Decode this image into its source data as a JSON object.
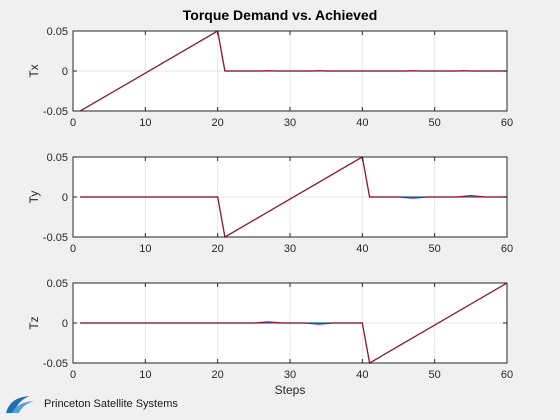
{
  "window": {
    "background": "#f0f0f0"
  },
  "logo": {
    "text": "Princeton Satellite Systems",
    "color": "#1f6fb6"
  },
  "chart_data": {
    "type": "line",
    "title": "Torque Demand vs. Achieved",
    "xlabel": "Steps",
    "colors": {
      "demand": "#0072bd",
      "achieved": "#a2142f",
      "extra": "#edb120",
      "extra2": "#77ac30"
    },
    "grid": true,
    "panels": [
      {
        "ylabel": "Tx",
        "xlim": [
          0,
          60
        ],
        "ylim": [
          -0.05,
          0.05
        ],
        "xticks": [
          "0",
          "10",
          "20",
          "30",
          "40",
          "50",
          "60"
        ],
        "yticks": [
          "0.05",
          "0",
          "-0.05"
        ],
        "series": [
          {
            "key": "demand",
            "x": [
              1,
              20,
              21,
              60
            ],
            "y": [
              -0.05,
              0.05,
              0,
              0
            ]
          },
          {
            "key": "achieved",
            "x": [
              1,
              20,
              21,
              26,
              27,
              28,
              33,
              34,
              35,
              46,
              47,
              48,
              53,
              54,
              55,
              60
            ],
            "y": [
              -0.05,
              0.05,
              0,
              0,
              0.0004,
              0,
              0,
              0.0004,
              0,
              0,
              0.0004,
              0,
              0,
              0.0004,
              0,
              0
            ]
          }
        ]
      },
      {
        "ylabel": "Ty",
        "xlim": [
          0,
          60
        ],
        "ylim": [
          -0.05,
          0.05
        ],
        "xticks": [
          "0",
          "10",
          "20",
          "30",
          "40",
          "50",
          "60"
        ],
        "yticks": [
          "0.05",
          "0",
          "-0.05"
        ],
        "series": [
          {
            "key": "demand",
            "x": [
              1,
              20,
              21,
              40,
              41,
              60
            ],
            "y": [
              0,
              0,
              -0.05,
              0.05,
              0,
              0
            ]
          },
          {
            "key": "achieved",
            "x": [
              1,
              20,
              21,
              40,
              41,
              45,
              47,
              49,
              53,
              55,
              57,
              60
            ],
            "y": [
              0,
              0,
              -0.05,
              0.05,
              0,
              0,
              -0.0015,
              0,
              0,
              0.0018,
              0,
              0
            ]
          }
        ]
      },
      {
        "ylabel": "Tz",
        "xlim": [
          0,
          60
        ],
        "ylim": [
          -0.05,
          0.05
        ],
        "xticks": [
          "0",
          "10",
          "20",
          "30",
          "40",
          "50",
          "60"
        ],
        "yticks": [
          "0.05",
          "0",
          "-0.05"
        ],
        "series": [
          {
            "key": "demand",
            "x": [
              1,
              40,
              41,
              60
            ],
            "y": [
              0,
              0,
              -0.05,
              0.05
            ]
          },
          {
            "key": "achieved",
            "x": [
              1,
              25,
              27,
              29,
              32,
              34,
              36,
              40,
              41,
              60
            ],
            "y": [
              0,
              0,
              0.0015,
              0,
              0,
              -0.0015,
              0,
              0,
              -0.05,
              0.05
            ]
          }
        ]
      }
    ]
  }
}
